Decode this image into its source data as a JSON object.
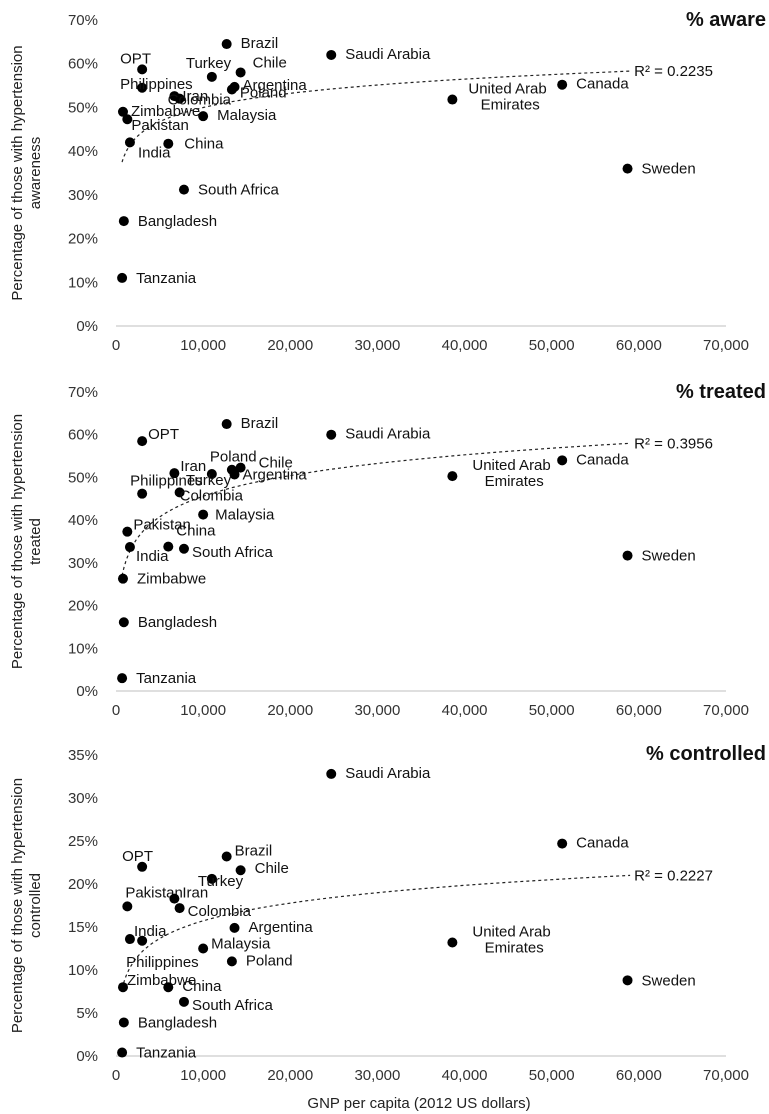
{
  "x_axis_title": "GNP per capita (2012 US dollars)",
  "chart_data": [
    {
      "type": "scatter",
      "title": "% aware",
      "ylabel_lines": [
        "Percentage of those with hypertension",
        "awareness"
      ],
      "xlim": [
        0,
        70000
      ],
      "ylim": [
        0,
        70
      ],
      "xticks": [
        "0",
        "10,000",
        "20,000",
        "30,000",
        "40,000",
        "50,000",
        "60,000",
        "70,000"
      ],
      "yticks": [
        "0%",
        "10%",
        "20%",
        "30%",
        "40%",
        "50%",
        "60%",
        "70%"
      ],
      "r2": "R² = 0.2235",
      "trend": {
        "kind": "logarithmic",
        "from_x": 700,
        "from_y": 37.5,
        "to_x": 59000,
        "to_y": 58.3
      },
      "points": [
        {
          "label": "Brazil",
          "x": 12700,
          "y": 64.5
        },
        {
          "label": "Saudi Arabia",
          "x": 24700,
          "y": 62
        },
        {
          "label": "OPT",
          "x": 3000,
          "y": 58.7
        },
        {
          "label": "Turkey",
          "x": 11000,
          "y": 57
        },
        {
          "label": "Chile",
          "x": 14300,
          "y": 58
        },
        {
          "label": "Philippines",
          "x": 3000,
          "y": 54.5
        },
        {
          "label": "Argentina",
          "x": 13600,
          "y": 54.7
        },
        {
          "label": "Iran",
          "x": 6700,
          "y": 52.6
        },
        {
          "label": "Poland",
          "x": 13300,
          "y": 54.1
        },
        {
          "label": "Colombia",
          "x": 7300,
          "y": 52
        },
        {
          "label": "United Arab Emirates",
          "x": 38600,
          "y": 51.8
        },
        {
          "label": "Canada",
          "x": 51200,
          "y": 55.2
        },
        {
          "label": "Zimbabwe",
          "x": 800,
          "y": 49
        },
        {
          "label": "Malaysia",
          "x": 10000,
          "y": 48
        },
        {
          "label": "Pakistan",
          "x": 1300,
          "y": 47.3
        },
        {
          "label": "India",
          "x": 1600,
          "y": 42
        },
        {
          "label": "China",
          "x": 6000,
          "y": 41.7
        },
        {
          "label": "Sweden",
          "x": 58700,
          "y": 36
        },
        {
          "label": "South Africa",
          "x": 7800,
          "y": 31.2
        },
        {
          "label": "Bangladesh",
          "x": 900,
          "y": 24
        },
        {
          "label": "Tanzania",
          "x": 700,
          "y": 11
        }
      ]
    },
    {
      "type": "scatter",
      "title": "% treated",
      "ylabel_lines": [
        "Percentage of those with hypertension",
        "treated"
      ],
      "xlim": [
        0,
        70000
      ],
      "ylim": [
        0,
        70
      ],
      "xticks": [
        "0",
        "10,000",
        "20,000",
        "30,000",
        "40,000",
        "50,000",
        "60,000",
        "70,000"
      ],
      "yticks": [
        "0%",
        "10%",
        "20%",
        "30%",
        "40%",
        "50%",
        "60%",
        "70%"
      ],
      "r2": "R² = 0.3956",
      "trend": {
        "kind": "logarithmic",
        "from_x": 700,
        "from_y": 27,
        "to_x": 59000,
        "to_y": 58
      },
      "points": [
        {
          "label": "Brazil",
          "x": 12700,
          "y": 62.5
        },
        {
          "label": "Saudi Arabia",
          "x": 24700,
          "y": 60
        },
        {
          "label": "OPT",
          "x": 3000,
          "y": 58.5
        },
        {
          "label": "Iran",
          "x": 6700,
          "y": 51
        },
        {
          "label": "Poland",
          "x": 13300,
          "y": 51.8
        },
        {
          "label": "Chile",
          "x": 14300,
          "y": 52.3
        },
        {
          "label": "Argentina",
          "x": 13600,
          "y": 50.7
        },
        {
          "label": "Turkey",
          "x": 11000,
          "y": 50.8
        },
        {
          "label": "United Arab Emirates",
          "x": 38600,
          "y": 50.3
        },
        {
          "label": "Canada",
          "x": 51200,
          "y": 54
        },
        {
          "label": "Philippines",
          "x": 3000,
          "y": 46.2
        },
        {
          "label": "Colombia",
          "x": 7300,
          "y": 46.5
        },
        {
          "label": "Malaysia",
          "x": 10000,
          "y": 41.3
        },
        {
          "label": "Pakistan",
          "x": 1300,
          "y": 37.3
        },
        {
          "label": "India",
          "x": 1600,
          "y": 33.7
        },
        {
          "label": "China",
          "x": 6000,
          "y": 33.8
        },
        {
          "label": "South Africa",
          "x": 7800,
          "y": 33.3
        },
        {
          "label": "Sweden",
          "x": 58700,
          "y": 31.7
        },
        {
          "label": "Zimbabwe",
          "x": 800,
          "y": 26.3
        },
        {
          "label": "Bangladesh",
          "x": 900,
          "y": 16.1
        },
        {
          "label": "Tanzania",
          "x": 700,
          "y": 3
        }
      ]
    },
    {
      "type": "scatter",
      "title": "% controlled",
      "ylabel_lines": [
        "Percentage of those with hypertension",
        "controlled"
      ],
      "xlim": [
        0,
        70000
      ],
      "ylim": [
        0,
        35
      ],
      "xticks": [
        "0",
        "10,000",
        "20,000",
        "30,000",
        "40,000",
        "50,000",
        "60,000",
        "70,000"
      ],
      "yticks": [
        "0%",
        "5%",
        "10%",
        "15%",
        "20%",
        "25%",
        "30%",
        "35%"
      ],
      "r2": "R² = 0.2227",
      "trend": {
        "kind": "logarithmic",
        "from_x": 700,
        "from_y": 7.8,
        "to_x": 59000,
        "to_y": 21
      },
      "points": [
        {
          "label": "Saudi Arabia",
          "x": 24700,
          "y": 32.8
        },
        {
          "label": "Canada",
          "x": 51200,
          "y": 24.7
        },
        {
          "label": "Brazil",
          "x": 12700,
          "y": 23.2
        },
        {
          "label": "OPT",
          "x": 3000,
          "y": 22
        },
        {
          "label": "Chile",
          "x": 14300,
          "y": 21.6
        },
        {
          "label": "Turkey",
          "x": 11000,
          "y": 20.6
        },
        {
          "label": "Pakistan",
          "x": 1300,
          "y": 17.4
        },
        {
          "label": "Iran",
          "x": 6700,
          "y": 18.3
        },
        {
          "label": "Colombia",
          "x": 7300,
          "y": 17.2
        },
        {
          "label": "Argentina",
          "x": 13600,
          "y": 14.9
        },
        {
          "label": "India",
          "x": 1600,
          "y": 13.6
        },
        {
          "label": "Philippines",
          "x": 3000,
          "y": 13.4
        },
        {
          "label": "United Arab Emirates",
          "x": 38600,
          "y": 13.2
        },
        {
          "label": "Malaysia",
          "x": 10000,
          "y": 12.5
        },
        {
          "label": "Poland",
          "x": 13300,
          "y": 11
        },
        {
          "label": "Sweden",
          "x": 58700,
          "y": 8.8
        },
        {
          "label": "Zimbabwe",
          "x": 800,
          "y": 8
        },
        {
          "label": "China",
          "x": 6000,
          "y": 8
        },
        {
          "label": "South Africa",
          "x": 7800,
          "y": 6.3
        },
        {
          "label": "Bangladesh",
          "x": 900,
          "y": 3.9
        },
        {
          "label": "Tanzania",
          "x": 700,
          "y": 0.4
        }
      ]
    }
  ]
}
